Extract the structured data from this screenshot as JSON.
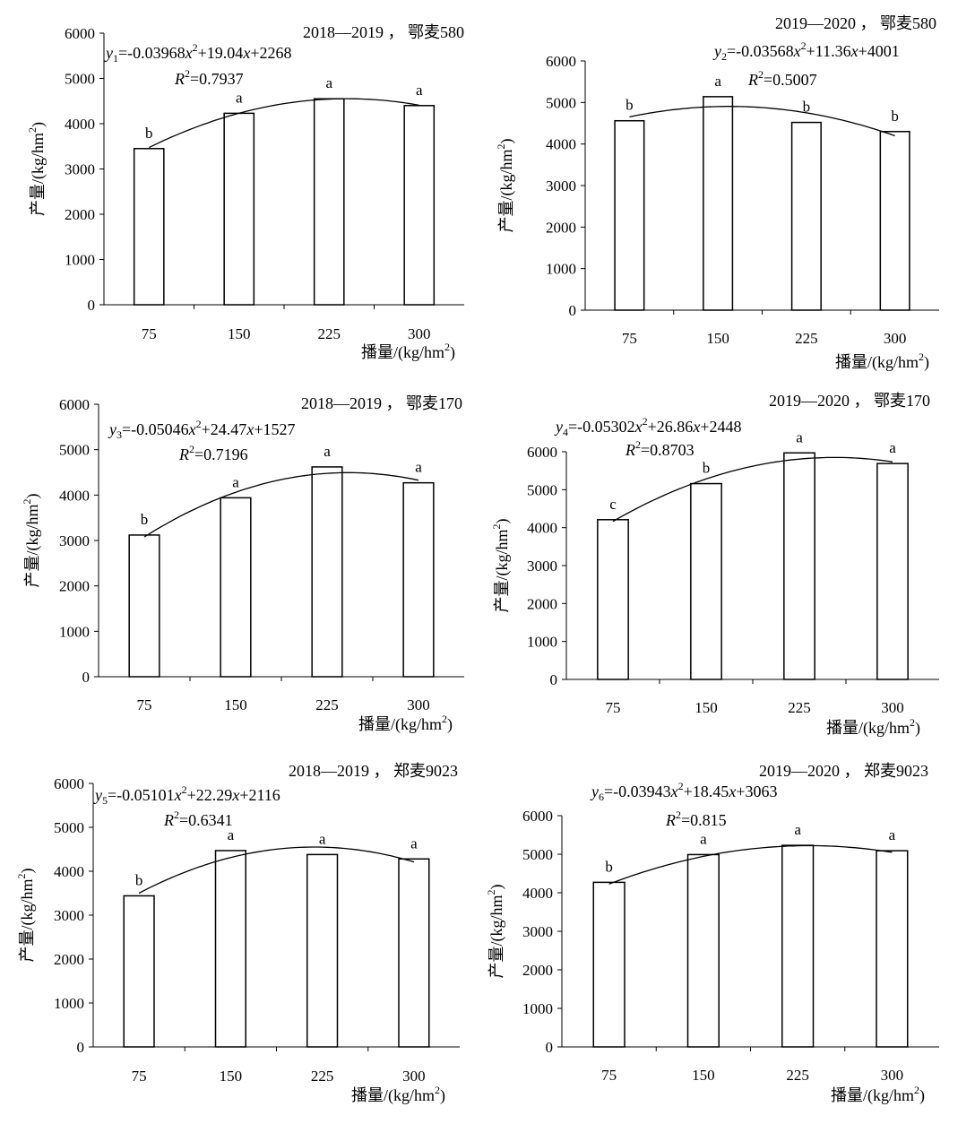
{
  "chart_data": [
    {
      "type": "bar",
      "title": "2018—2019 ， 鄂麦580",
      "xlabel": "播量/(kg/hm",
      "xlabel_sup": "2",
      "xlabel_end": ")",
      "ylabel": "产量/(kg/hm",
      "ylabel_sup": "2",
      "ylabel_end": ")",
      "categories": [
        "75",
        "150",
        "225",
        "300"
      ],
      "values": [
        3450,
        4230,
        4550,
        4400
      ],
      "letters": [
        "b",
        "a",
        "a",
        "a"
      ],
      "ylim": [
        0,
        6000
      ],
      "yticks": [
        "0",
        "1000",
        "2000",
        "3000",
        "4000",
        "5000",
        "6000"
      ],
      "equation": {
        "y": "y",
        "sub": "1",
        "a": "=-0.03968",
        "x": "x",
        "sup": "2",
        "rest": "+19.04",
        "x2": "x",
        "c": "+2268"
      },
      "r2": {
        "r": "R",
        "sup": "2",
        "val": "=0.7937"
      },
      "fit": {
        "a": -0.03968,
        "b": 19.04,
        "c": 2268
      }
    },
    {
      "type": "bar",
      "title": "2019—2020 ， 鄂麦580",
      "xlabel": "播量/(kg/hm",
      "xlabel_sup": "2",
      "xlabel_end": ")",
      "ylabel": "产量/(kg/hm",
      "ylabel_sup": "2",
      "ylabel_end": ")",
      "categories": [
        "75",
        "150",
        "225",
        "300"
      ],
      "values": [
        4560,
        5140,
        4520,
        4300
      ],
      "letters": [
        "b",
        "a",
        "b",
        "b"
      ],
      "ylim": [
        0,
        6000
      ],
      "yticks": [
        "0",
        "1000",
        "2000",
        "3000",
        "4000",
        "5000",
        "6000"
      ],
      "equation": {
        "y": "y",
        "sub": "2",
        "a": "=-0.03568",
        "x": "x",
        "sup": "2",
        "rest": "+11.36",
        "x2": "x",
        "c": "+4001"
      },
      "r2": {
        "r": "R",
        "sup": "2",
        "val": "=0.5007"
      },
      "fit": {
        "a": -0.03568,
        "b": 11.36,
        "c": 4001
      }
    },
    {
      "type": "bar",
      "title": "2018—2019 ， 鄂麦170",
      "xlabel": "播量/(kg/hm",
      "xlabel_sup": "2",
      "xlabel_end": ")",
      "ylabel": "产量/(kg/hm",
      "ylabel_sup": "2",
      "ylabel_end": ")",
      "categories": [
        "75",
        "150",
        "225",
        "300"
      ],
      "values": [
        3120,
        3940,
        4620,
        4270
      ],
      "letters": [
        "b",
        "a",
        "a",
        "a"
      ],
      "ylim": [
        0,
        6000
      ],
      "yticks": [
        "0",
        "1000",
        "2000",
        "3000",
        "4000",
        "5000",
        "6000"
      ],
      "equation": {
        "y": "y",
        "sub": "3",
        "a": "=-0.05046",
        "x": "x",
        "sup": "2",
        "rest": "+24.47",
        "x2": "x",
        "c": "+1527"
      },
      "r2": {
        "r": "R",
        "sup": "2",
        "val": "=0.7196"
      },
      "fit": {
        "a": -0.05046,
        "b": 24.47,
        "c": 1527
      }
    },
    {
      "type": "bar",
      "title": "2019—2020 ， 鄂麦170",
      "xlabel": "播量/(kg/hm",
      "xlabel_sup": "2",
      "xlabel_end": ")",
      "ylabel": "产量/(kg/hm",
      "ylabel_sup": "2",
      "ylabel_end": ")",
      "categories": [
        "75",
        "150",
        "225",
        "300"
      ],
      "values": [
        4210,
        5160,
        5970,
        5690
      ],
      "letters": [
        "c",
        "b",
        "a",
        "a"
      ],
      "ylim": [
        0,
        6000
      ],
      "yticks": [
        "0",
        "1000",
        "2000",
        "3000",
        "4000",
        "5000",
        "6000"
      ],
      "equation": {
        "y": "y",
        "sub": "4",
        "a": "=-0.05302",
        "x": "x",
        "sup": "2",
        "rest": "+26.86",
        "x2": "x",
        "c": "+2448"
      },
      "r2": {
        "r": "R",
        "sup": "2",
        "val": "=0.8703"
      },
      "fit": {
        "a": -0.05302,
        "b": 26.86,
        "c": 2448
      }
    },
    {
      "type": "bar",
      "title": "2018—2019 ， 郑麦9023",
      "xlabel": "播量/(kg/hm",
      "xlabel_sup": "2",
      "xlabel_end": ")",
      "ylabel": "产量/(kg/hm",
      "ylabel_sup": "2",
      "ylabel_end": ")",
      "categories": [
        "75",
        "150",
        "225",
        "300"
      ],
      "values": [
        3440,
        4470,
        4380,
        4280
      ],
      "letters": [
        "b",
        "a",
        "a",
        "a"
      ],
      "ylim": [
        0,
        6000
      ],
      "yticks": [
        "0",
        "1000",
        "2000",
        "3000",
        "4000",
        "5000",
        "6000"
      ],
      "equation": {
        "y": "y",
        "sub": "5",
        "a": "=-0.05101",
        "x": "x",
        "sup": "2",
        "rest": "+22.29",
        "x2": "x",
        "c": "+2116"
      },
      "r2": {
        "r": "R",
        "sup": "2",
        "val": "=0.6341"
      },
      "fit": {
        "a": -0.05101,
        "b": 22.29,
        "c": 2116
      }
    },
    {
      "type": "bar",
      "title": "2019—2020 ， 郑麦9023",
      "xlabel": "播量/(kg/hm",
      "xlabel_sup": "2",
      "xlabel_end": ")",
      "ylabel": "产量/(kg/hm",
      "ylabel_sup": "2",
      "ylabel_end": ")",
      "categories": [
        "75",
        "150",
        "225",
        "300"
      ],
      "values": [
        4270,
        4990,
        5230,
        5090
      ],
      "letters": [
        "b",
        "a",
        "a",
        "a"
      ],
      "ylim": [
        0,
        6000
      ],
      "yticks": [
        "0",
        "1000",
        "2000",
        "3000",
        "4000",
        "5000",
        "6000"
      ],
      "equation": {
        "y": "y",
        "sub": "6",
        "a": "=-0.03943",
        "x": "x",
        "sup": "2",
        "rest": "+18.45",
        "x2": "x",
        "c": "+3063"
      },
      "r2": {
        "r": "R",
        "sup": "2",
        "val": "=0.815"
      },
      "fit": {
        "a": -0.03943,
        "b": 18.45,
        "c": 3063
      }
    }
  ]
}
